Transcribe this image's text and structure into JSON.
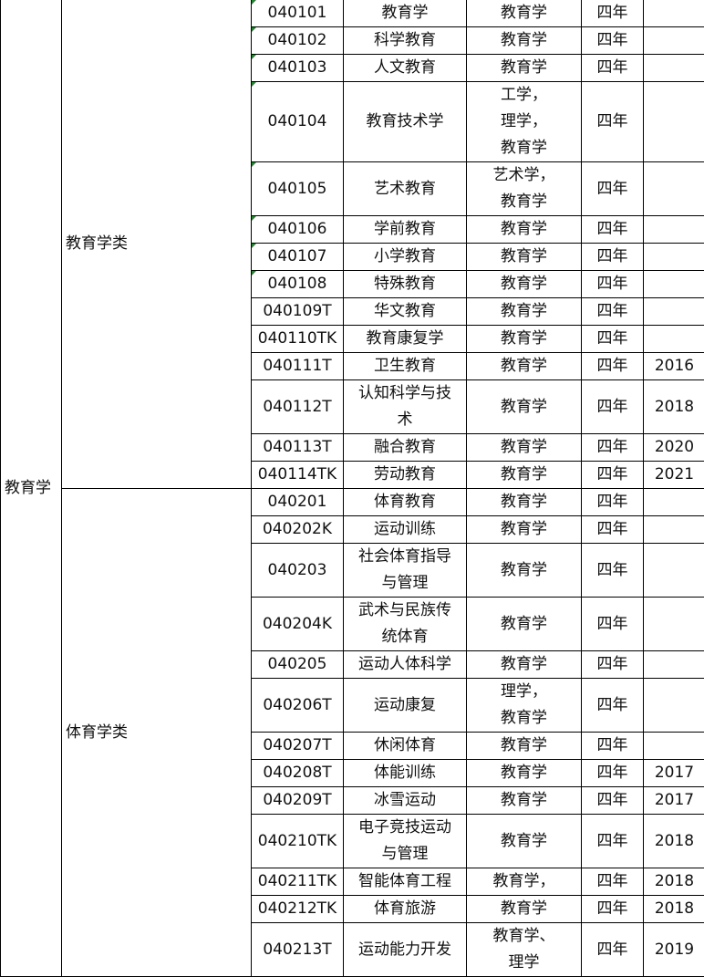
{
  "discipline": "教育学",
  "groups": [
    {
      "name": "教育学类",
      "rows": [
        {
          "code": "040101",
          "major": "教育学",
          "degree": "教育学",
          "years": "四年",
          "year_added": "",
          "h": 1
        },
        {
          "code": "040102",
          "major": "科学教育",
          "degree": "教育学",
          "years": "四年",
          "year_added": "",
          "h": 1
        },
        {
          "code": "040103",
          "major": "人文教育",
          "degree": "教育学",
          "years": "四年",
          "year_added": "",
          "h": 1
        },
        {
          "code": "040104",
          "major": "教育技术学",
          "degree": "工学，\n理学，\n教育学",
          "years": "四年",
          "year_added": "",
          "h": 3
        },
        {
          "code": "040105",
          "major": "艺术教育",
          "degree": "艺术学，\n教育学",
          "years": "四年",
          "year_added": "",
          "h": 2
        },
        {
          "code": "040106",
          "major": "学前教育",
          "degree": "教育学",
          "years": "四年",
          "year_added": "",
          "h": 1
        },
        {
          "code": "040107",
          "major": "小学教育",
          "degree": "教育学",
          "years": "四年",
          "year_added": "",
          "h": 1
        },
        {
          "code": "040108",
          "major": "特殊教育",
          "degree": "教育学",
          "years": "四年",
          "year_added": "",
          "h": 1
        },
        {
          "code": "040109T",
          "major": "华文教育",
          "degree": "教育学",
          "years": "四年",
          "year_added": "",
          "h": 1
        },
        {
          "code": "040110TK",
          "major": "教育康复学",
          "degree": "教育学",
          "years": "四年",
          "year_added": "",
          "h": 1
        },
        {
          "code": "040111T",
          "major": "卫生教育",
          "degree": "教育学",
          "years": "四年",
          "year_added": "2016",
          "h": 1
        },
        {
          "code": "040112T",
          "major": "认知科学与技\n术",
          "degree": "教育学",
          "years": "四年",
          "year_added": "2018",
          "h": 2
        },
        {
          "code": "040113T",
          "major": "融合教育",
          "degree": "教育学",
          "years": "四年",
          "year_added": "2020",
          "h": 1
        },
        {
          "code": "040114TK",
          "major": "劳动教育",
          "degree": "教育学",
          "years": "四年",
          "year_added": "2021",
          "h": 1
        }
      ]
    },
    {
      "name": "体育学类",
      "rows": [
        {
          "code": "040201",
          "major": "体育教育",
          "degree": "教育学",
          "years": "四年",
          "year_added": "",
          "h": 1
        },
        {
          "code": "040202K",
          "major": "运动训练",
          "degree": "教育学",
          "years": "四年",
          "year_added": "",
          "h": 1
        },
        {
          "code": "040203",
          "major": "社会体育指导\n与管理",
          "degree": "教育学",
          "years": "四年",
          "year_added": "",
          "h": 2
        },
        {
          "code": "040204K",
          "major": "武术与民族传\n统体育",
          "degree": "教育学",
          "years": "四年",
          "year_added": "",
          "h": 2
        },
        {
          "code": "040205",
          "major": "运动人体科学",
          "degree": "教育学",
          "years": "四年",
          "year_added": "",
          "h": 1
        },
        {
          "code": "040206T",
          "major": "运动康复",
          "degree": "理学，\n教育学",
          "years": "四年",
          "year_added": "",
          "h": 2
        },
        {
          "code": "040207T",
          "major": "休闲体育",
          "degree": "教育学",
          "years": "四年",
          "year_added": "",
          "h": 1
        },
        {
          "code": "040208T",
          "major": "体能训练",
          "degree": "教育学",
          "years": "四年",
          "year_added": "2017",
          "h": 1
        },
        {
          "code": "040209T",
          "major": "冰雪运动",
          "degree": "教育学",
          "years": "四年",
          "year_added": "2017",
          "h": 1
        },
        {
          "code": "040210TK",
          "major": "电子竞技运动\n与管理",
          "degree": "教育学",
          "years": "四年",
          "year_added": "2018",
          "h": 2
        },
        {
          "code": "040211TK",
          "major": "智能体育工程",
          "degree": "教育学，",
          "years": "四年",
          "year_added": "2018",
          "h": 1
        },
        {
          "code": "040212TK",
          "major": "体育旅游",
          "degree": "教育学",
          "years": "四年",
          "year_added": "2018",
          "h": 1
        },
        {
          "code": "040213T",
          "major": "运动能力开发",
          "degree": "教育学、\n理学",
          "years": "四年",
          "year_added": "2019",
          "h": 2
        }
      ]
    }
  ]
}
